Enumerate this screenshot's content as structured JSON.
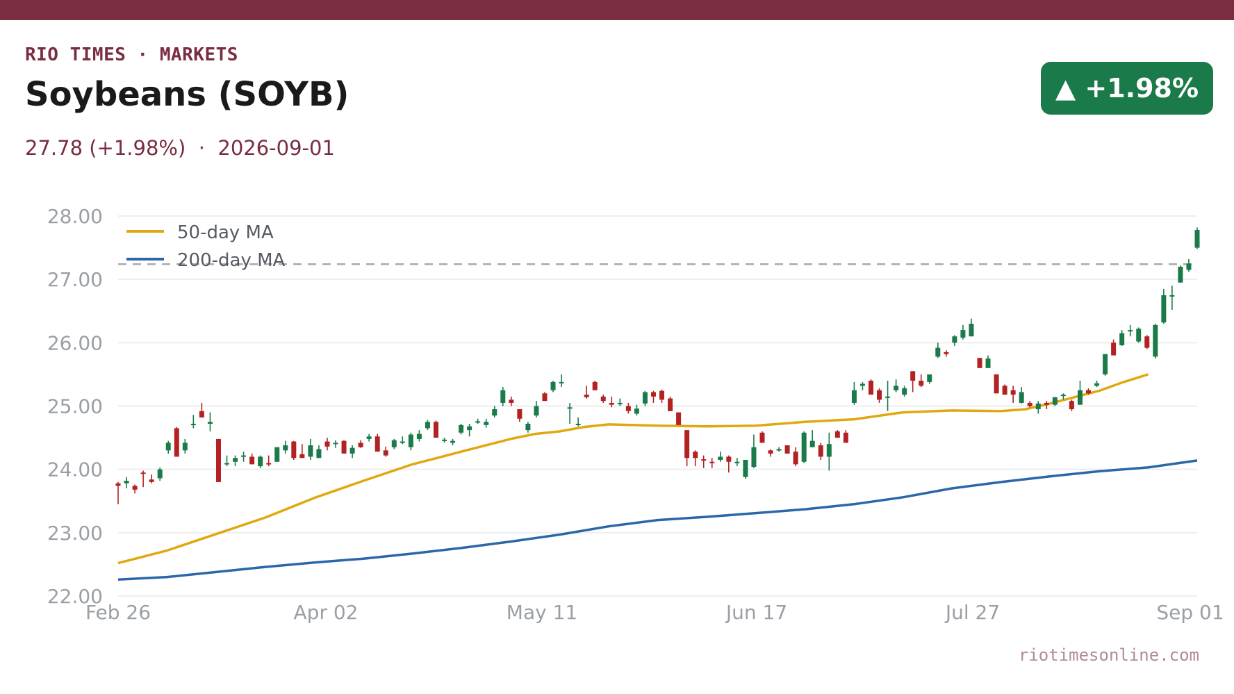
{
  "header": {
    "brand": "RIO TIMES · MARKETS",
    "title": "Soybeans (SOYB)",
    "subtitle": "27.78 (+1.98%)  ·  2026-09-01",
    "badge": "▲ +1.98%"
  },
  "footer": {
    "source": "riotimesonline.com"
  },
  "colors": {
    "accent": "#7a2d40",
    "up": "#1a7a4a",
    "down": "#b22222",
    "ma50": "#e0a810",
    "ma200": "#2b67a8",
    "grid": "#eeeeee",
    "reference": "#aaaaaa"
  },
  "chart_data": {
    "type": "candlestick",
    "ylim": [
      22.0,
      28.0
    ],
    "yticks": [
      "22.00",
      "23.00",
      "24.00",
      "25.00",
      "26.00",
      "27.00",
      "28.00"
    ],
    "xticks": [
      "Feb 26",
      "Apr 02",
      "May 11",
      "Jun 17",
      "Jul 27",
      "Sep 01"
    ],
    "legend": {
      "placement": "top-left",
      "entries": [
        "50-day MA",
        "200-day MA"
      ]
    },
    "reference_line": 27.24,
    "candles": [
      [
        23.78,
        23.8,
        23.45,
        23.74
      ],
      [
        23.78,
        23.88,
        23.7,
        23.82
      ],
      [
        23.74,
        23.76,
        23.62,
        23.68
      ],
      [
        23.95,
        23.98,
        23.72,
        23.94
      ],
      [
        23.84,
        23.92,
        23.78,
        23.8
      ],
      [
        23.86,
        24.03,
        23.82,
        24.0
      ],
      [
        24.3,
        24.45,
        24.25,
        24.42
      ],
      [
        24.65,
        24.67,
        24.2,
        24.2
      ],
      [
        24.3,
        24.48,
        24.25,
        24.42
      ],
      [
        24.72,
        24.86,
        24.65,
        24.72
      ],
      [
        24.92,
        25.05,
        24.82,
        24.82
      ],
      [
        24.72,
        24.9,
        24.6,
        24.75
      ],
      [
        24.48,
        24.48,
        23.8,
        23.8
      ],
      [
        24.08,
        24.22,
        24.05,
        24.1
      ],
      [
        24.12,
        24.22,
        24.05,
        24.18
      ],
      [
        24.2,
        24.28,
        24.12,
        24.22
      ],
      [
        24.2,
        24.25,
        24.08,
        24.08
      ],
      [
        24.05,
        24.22,
        24.02,
        24.2
      ],
      [
        24.1,
        24.22,
        24.05,
        24.08
      ],
      [
        24.12,
        24.35,
        24.12,
        24.35
      ],
      [
        24.3,
        24.45,
        24.25,
        24.38
      ],
      [
        24.44,
        24.45,
        24.15,
        24.18
      ],
      [
        24.24,
        24.4,
        24.18,
        24.18
      ],
      [
        24.2,
        24.48,
        24.15,
        24.38
      ],
      [
        24.18,
        24.38,
        24.18,
        24.32
      ],
      [
        24.44,
        24.5,
        24.3,
        24.36
      ],
      [
        24.42,
        24.46,
        24.34,
        24.42
      ],
      [
        24.45,
        24.46,
        24.28,
        24.25
      ],
      [
        24.25,
        24.38,
        24.18,
        24.34
      ],
      [
        24.42,
        24.46,
        24.34,
        24.35
      ],
      [
        24.48,
        24.56,
        24.44,
        24.52
      ],
      [
        24.52,
        24.56,
        24.32,
        24.28
      ],
      [
        24.3,
        24.36,
        24.2,
        24.22
      ],
      [
        24.35,
        24.48,
        24.32,
        24.46
      ],
      [
        24.44,
        24.52,
        24.4,
        24.44
      ],
      [
        24.35,
        24.58,
        24.3,
        24.55
      ],
      [
        24.48,
        24.62,
        24.44,
        24.56
      ],
      [
        24.65,
        24.78,
        24.62,
        24.75
      ],
      [
        24.75,
        24.77,
        24.5,
        24.5
      ],
      [
        24.45,
        24.5,
        24.42,
        24.47
      ],
      [
        24.42,
        24.48,
        24.38,
        24.45
      ],
      [
        24.58,
        24.72,
        24.55,
        24.7
      ],
      [
        24.62,
        24.72,
        24.52,
        24.68
      ],
      [
        24.75,
        24.8,
        24.72,
        24.76
      ],
      [
        24.7,
        24.8,
        24.66,
        24.75
      ],
      [
        24.85,
        25.0,
        24.82,
        24.95
      ],
      [
        25.05,
        25.3,
        25.0,
        25.25
      ],
      [
        25.1,
        25.15,
        25.0,
        25.05
      ],
      [
        24.95,
        24.95,
        24.75,
        24.8
      ],
      [
        24.62,
        24.75,
        24.58,
        24.72
      ],
      [
        24.85,
        25.08,
        24.82,
        25.0
      ],
      [
        25.2,
        25.22,
        25.08,
        25.08
      ],
      [
        25.25,
        25.4,
        25.22,
        25.38
      ],
      [
        25.36,
        25.5,
        25.3,
        25.38
      ],
      [
        24.98,
        25.05,
        24.72,
        24.98
      ],
      [
        24.72,
        24.82,
        24.68,
        24.72
      ],
      [
        25.18,
        25.32,
        25.12,
        25.14
      ],
      [
        25.38,
        25.4,
        25.25,
        25.25
      ],
      [
        25.15,
        25.18,
        25.05,
        25.08
      ],
      [
        25.05,
        25.15,
        24.98,
        25.02
      ],
      [
        25.05,
        25.12,
        25.0,
        25.05
      ],
      [
        25.0,
        25.05,
        24.88,
        24.92
      ],
      [
        24.88,
        25.02,
        24.85,
        24.96
      ],
      [
        25.04,
        25.24,
        25.0,
        25.22
      ],
      [
        25.22,
        25.24,
        25.05,
        25.15
      ],
      [
        25.24,
        25.26,
        25.05,
        25.1
      ],
      [
        25.12,
        25.15,
        24.92,
        24.92
      ],
      [
        24.9,
        24.9,
        24.7,
        24.7
      ],
      [
        24.62,
        24.62,
        24.05,
        24.18
      ],
      [
        24.28,
        24.3,
        24.05,
        24.18
      ],
      [
        24.16,
        24.22,
        24.02,
        24.15
      ],
      [
        24.12,
        24.18,
        24.02,
        24.1
      ],
      [
        24.15,
        24.28,
        24.12,
        24.2
      ],
      [
        24.2,
        24.22,
        23.95,
        24.12
      ],
      [
        24.1,
        24.18,
        24.05,
        24.12
      ],
      [
        23.88,
        24.15,
        23.85,
        24.15
      ],
      [
        24.04,
        24.55,
        24.02,
        24.35
      ],
      [
        24.58,
        24.6,
        24.42,
        24.42
      ],
      [
        24.3,
        24.32,
        24.2,
        24.25
      ],
      [
        24.3,
        24.35,
        24.28,
        24.32
      ],
      [
        24.38,
        24.38,
        24.25,
        24.25
      ],
      [
        24.28,
        24.35,
        24.05,
        24.08
      ],
      [
        24.12,
        24.6,
        24.1,
        24.58
      ],
      [
        24.35,
        24.62,
        24.35,
        24.45
      ],
      [
        24.38,
        24.42,
        24.15,
        24.2
      ],
      [
        24.2,
        24.58,
        23.98,
        24.4
      ],
      [
        24.6,
        24.62,
        24.5,
        24.5
      ],
      [
        24.58,
        24.62,
        24.42,
        24.42
      ],
      [
        25.05,
        25.38,
        25.02,
        25.25
      ],
      [
        25.32,
        25.38,
        25.25,
        25.35
      ],
      [
        25.4,
        25.42,
        25.18,
        25.18
      ],
      [
        25.25,
        25.28,
        25.05,
        25.1
      ],
      [
        25.15,
        25.4,
        24.92,
        25.15
      ],
      [
        25.25,
        25.42,
        25.22,
        25.32
      ],
      [
        25.18,
        25.32,
        25.15,
        25.28
      ],
      [
        25.55,
        25.55,
        25.22,
        25.4
      ],
      [
        25.4,
        25.5,
        25.3,
        25.32
      ],
      [
        25.38,
        25.5,
        25.35,
        25.5
      ],
      [
        25.78,
        26.0,
        25.76,
        25.92
      ],
      [
        25.85,
        25.88,
        25.78,
        25.82
      ],
      [
        26.0,
        26.12,
        25.95,
        26.1
      ],
      [
        26.08,
        26.28,
        26.05,
        26.2
      ],
      [
        26.1,
        26.38,
        26.1,
        26.3
      ],
      [
        25.76,
        25.76,
        25.6,
        25.6
      ],
      [
        25.6,
        25.8,
        25.6,
        25.75
      ],
      [
        25.5,
        25.5,
        25.2,
        25.2
      ],
      [
        25.32,
        25.34,
        25.18,
        25.18
      ],
      [
        25.25,
        25.32,
        25.05,
        25.18
      ],
      [
        25.05,
        25.3,
        25.04,
        25.22
      ],
      [
        25.05,
        25.08,
        24.98,
        25.0
      ],
      [
        24.95,
        25.08,
        24.88,
        25.04
      ],
      [
        25.05,
        25.08,
        24.95,
        25.02
      ],
      [
        25.02,
        25.14,
        25.0,
        25.14
      ],
      [
        25.18,
        25.2,
        25.1,
        25.18
      ],
      [
        25.08,
        25.1,
        24.92,
        24.95
      ],
      [
        25.02,
        25.4,
        25.02,
        25.25
      ],
      [
        25.25,
        25.28,
        25.18,
        25.2
      ],
      [
        25.32,
        25.4,
        25.3,
        25.36
      ],
      [
        25.5,
        25.82,
        25.48,
        25.82
      ],
      [
        26.0,
        26.05,
        25.8,
        25.8
      ],
      [
        25.96,
        26.2,
        25.95,
        26.15
      ],
      [
        26.18,
        26.28,
        26.1,
        26.2
      ],
      [
        26.02,
        26.24,
        26.0,
        26.22
      ],
      [
        26.1,
        26.12,
        25.9,
        25.92
      ],
      [
        25.78,
        26.3,
        25.75,
        26.28
      ],
      [
        26.32,
        26.85,
        26.3,
        26.75
      ],
      [
        26.75,
        26.9,
        26.52,
        26.75
      ],
      [
        26.95,
        27.22,
        26.95,
        27.2
      ],
      [
        27.15,
        27.32,
        27.12,
        27.25
      ],
      [
        27.5,
        27.82,
        27.48,
        27.78
      ]
    ],
    "ma50": [
      [
        0,
        22.52
      ],
      [
        10,
        22.72
      ],
      [
        20,
        22.98
      ],
      [
        30,
        23.24
      ],
      [
        40,
        23.55
      ],
      [
        50,
        23.82
      ],
      [
        60,
        24.08
      ],
      [
        70,
        24.28
      ],
      [
        80,
        24.48
      ],
      [
        85,
        24.56
      ],
      [
        90,
        24.6
      ],
      [
        95,
        24.67
      ],
      [
        100,
        24.71
      ],
      [
        110,
        24.69
      ],
      [
        120,
        24.68
      ],
      [
        130,
        24.69
      ],
      [
        140,
        24.75
      ],
      [
        150,
        24.79
      ],
      [
        160,
        24.9
      ],
      [
        170,
        24.93
      ],
      [
        180,
        24.92
      ],
      [
        185,
        24.95
      ],
      [
        190,
        25.04
      ],
      [
        195,
        25.14
      ],
      [
        200,
        25.24
      ],
      [
        205,
        25.38
      ],
      [
        210,
        25.5
      ]
    ],
    "ma200": [
      [
        0,
        22.26
      ],
      [
        10,
        22.3
      ],
      [
        20,
        22.38
      ],
      [
        30,
        22.46
      ],
      [
        40,
        22.53
      ],
      [
        50,
        22.59
      ],
      [
        60,
        22.67
      ],
      [
        70,
        22.76
      ],
      [
        80,
        22.86
      ],
      [
        90,
        22.97
      ],
      [
        100,
        23.1
      ],
      [
        110,
        23.2
      ],
      [
        120,
        23.25
      ],
      [
        130,
        23.31
      ],
      [
        140,
        23.37
      ],
      [
        150,
        23.45
      ],
      [
        160,
        23.56
      ],
      [
        170,
        23.7
      ],
      [
        180,
        23.8
      ],
      [
        190,
        23.89
      ],
      [
        200,
        23.97
      ],
      [
        210,
        24.03
      ],
      [
        220,
        24.14
      ]
    ]
  }
}
